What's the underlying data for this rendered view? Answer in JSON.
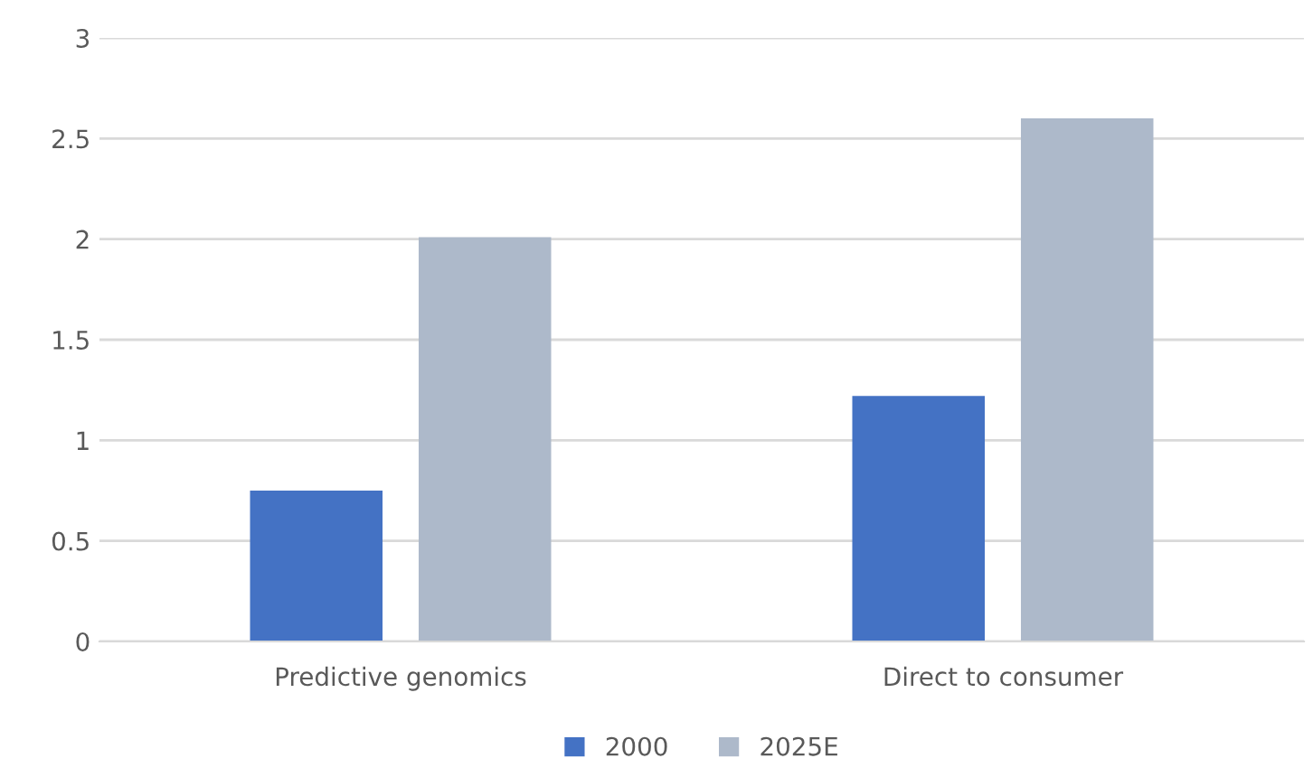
{
  "chart_data": {
    "type": "bar",
    "categories": [
      "Predictive genomics",
      "Direct to consumer"
    ],
    "series": [
      {
        "name": "2000",
        "color": "#4472c4",
        "values": [
          0.75,
          1.22
        ]
      },
      {
        "name": "2025E",
        "color": "#adb9ca",
        "values": [
          2.01,
          2.6
        ]
      }
    ],
    "ylim": [
      0,
      3
    ],
    "yticks": [
      0,
      0.5,
      1,
      1.5,
      2,
      2.5,
      3
    ],
    "grid": "y",
    "legend": "bottom"
  }
}
